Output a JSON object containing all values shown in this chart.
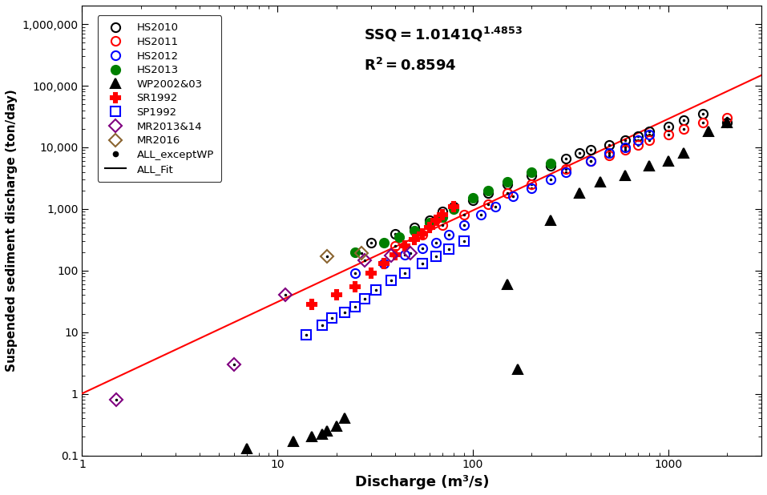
{
  "xlabel": "Discharge (m³/s)",
  "ylabel": "Suspended sediment discharge (ton/day)",
  "fit_coeff": 1.0141,
  "fit_exp": 1.4853,
  "xlim": [
    1,
    3000
  ],
  "ylim": [
    0.1,
    2000000
  ],
  "HS2010_Q": [
    30,
    40,
    50,
    60,
    70,
    80,
    100,
    120,
    150,
    200,
    250,
    300,
    350,
    400,
    500,
    600,
    700,
    800,
    1000,
    1200,
    1500,
    2000
  ],
  "HS2010_SS": [
    280,
    400,
    500,
    650,
    900,
    1100,
    1400,
    1800,
    2500,
    3500,
    5000,
    6500,
    8000,
    9000,
    11000,
    13000,
    15000,
    18000,
    22000,
    28000,
    35000,
    25000
  ],
  "HS2011_Q": [
    40,
    55,
    70,
    90,
    120,
    150,
    200,
    300,
    400,
    500,
    600,
    700,
    800,
    1000,
    1200,
    1500,
    2000
  ],
  "HS2011_SS": [
    250,
    380,
    550,
    800,
    1200,
    1800,
    2500,
    4500,
    6000,
    7500,
    9000,
    11000,
    13000,
    16000,
    20000,
    25000,
    30000
  ],
  "HS2012_Q": [
    25,
    35,
    45,
    55,
    65,
    75,
    90,
    110,
    130,
    160,
    200,
    250,
    300,
    400,
    500,
    600,
    700,
    800
  ],
  "HS2012_SS": [
    90,
    130,
    180,
    230,
    280,
    380,
    550,
    800,
    1100,
    1600,
    2200,
    3000,
    4000,
    6000,
    8000,
    10000,
    13000,
    16000
  ],
  "HS2013_Q": [
    25,
    35,
    42,
    50,
    60,
    70,
    80,
    100,
    120,
    150,
    200,
    250
  ],
  "HS2013_SS": [
    200,
    280,
    350,
    450,
    600,
    750,
    1000,
    1500,
    2000,
    2800,
    4000,
    5500
  ],
  "WP_Q": [
    7,
    12,
    15,
    17,
    18,
    20,
    22,
    150,
    170,
    250,
    350,
    450,
    600,
    800,
    1000,
    1200,
    1600,
    2000
  ],
  "WP_SS": [
    0.13,
    0.17,
    0.2,
    0.22,
    0.25,
    0.3,
    0.4,
    60,
    2.5,
    650,
    1800,
    2800,
    3500,
    5000,
    6000,
    8000,
    18000,
    25000
  ],
  "SR_Q": [
    15,
    20,
    25,
    30,
    35,
    40,
    45,
    50,
    55,
    60,
    65,
    70,
    80
  ],
  "SR_SS": [
    28,
    40,
    55,
    90,
    130,
    180,
    250,
    320,
    400,
    500,
    650,
    800,
    1100
  ],
  "SP_Q": [
    14,
    17,
    19,
    22,
    25,
    28,
    32,
    38,
    45,
    55,
    65,
    75,
    90
  ],
  "SP_SS": [
    9,
    13,
    17,
    21,
    26,
    35,
    48,
    70,
    90,
    130,
    170,
    220,
    300
  ],
  "MR13_Q": [
    1.5,
    6,
    11,
    28,
    38,
    48
  ],
  "MR13_SS": [
    0.8,
    3.0,
    40,
    145,
    175,
    195
  ],
  "MR16_Q": [
    18,
    27
  ],
  "MR16_SS": [
    170,
    190
  ],
  "legend_color_fit": "black"
}
